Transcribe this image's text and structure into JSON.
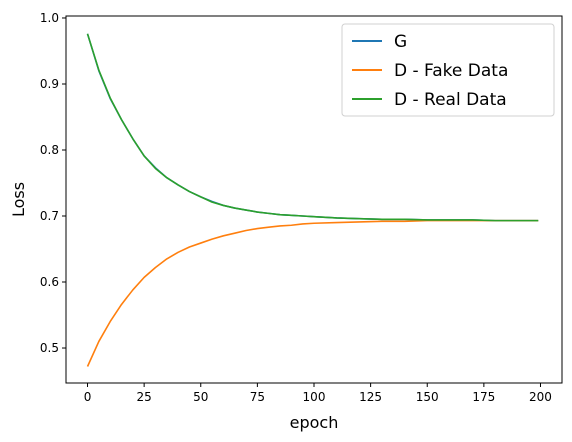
{
  "chart_data": {
    "type": "line",
    "xlabel": "epoch",
    "ylabel": "Loss",
    "xlim": [
      -9.5,
      209.5
    ],
    "ylim": [
      0.447,
      1.003
    ],
    "xticks": [
      0,
      25,
      50,
      75,
      100,
      125,
      150,
      175,
      200
    ],
    "xtick_labels": [
      "0",
      "25",
      "50",
      "75",
      "100",
      "125",
      "150",
      "175",
      "200"
    ],
    "yticks": [
      0.5,
      0.6,
      0.7,
      0.8,
      0.9,
      1.0
    ],
    "ytick_labels": [
      "0.5",
      "0.6",
      "0.7",
      "0.8",
      "0.9",
      "1.0"
    ],
    "grid": false,
    "legend": {
      "placement": "top-right"
    },
    "x": [
      0,
      5,
      10,
      15,
      20,
      25,
      30,
      35,
      40,
      45,
      50,
      55,
      60,
      65,
      70,
      75,
      80,
      85,
      90,
      95,
      100,
      110,
      120,
      130,
      140,
      150,
      160,
      170,
      180,
      190,
      199
    ],
    "series": [
      {
        "name": "G",
        "color": "#1f77b4",
        "values": [
          0.976,
          0.92,
          0.878,
          0.846,
          0.817,
          0.791,
          0.773,
          0.758,
          0.747,
          0.737,
          0.729,
          0.722,
          0.716,
          0.712,
          0.709,
          0.706,
          0.704,
          0.702,
          0.701,
          0.7,
          0.699,
          0.697,
          0.696,
          0.695,
          0.695,
          0.694,
          0.694,
          0.694,
          0.693,
          0.693,
          0.693
        ]
      },
      {
        "name": "D - Fake Data",
        "color": "#ff7f0e",
        "values": [
          0.472,
          0.51,
          0.54,
          0.566,
          0.588,
          0.607,
          0.622,
          0.635,
          0.645,
          0.653,
          0.659,
          0.665,
          0.67,
          0.674,
          0.678,
          0.681,
          0.683,
          0.685,
          0.686,
          0.688,
          0.689,
          0.69,
          0.691,
          0.692,
          0.692,
          0.693,
          0.693,
          0.693,
          0.693,
          0.693,
          0.693
        ]
      },
      {
        "name": "D - Real Data",
        "color": "#2ca02c",
        "values": [
          0.976,
          0.921,
          0.879,
          0.846,
          0.817,
          0.791,
          0.772,
          0.758,
          0.747,
          0.737,
          0.729,
          0.721,
          0.716,
          0.712,
          0.709,
          0.706,
          0.704,
          0.702,
          0.701,
          0.7,
          0.699,
          0.697,
          0.696,
          0.695,
          0.695,
          0.694,
          0.694,
          0.694,
          0.693,
          0.693,
          0.693
        ]
      }
    ]
  }
}
